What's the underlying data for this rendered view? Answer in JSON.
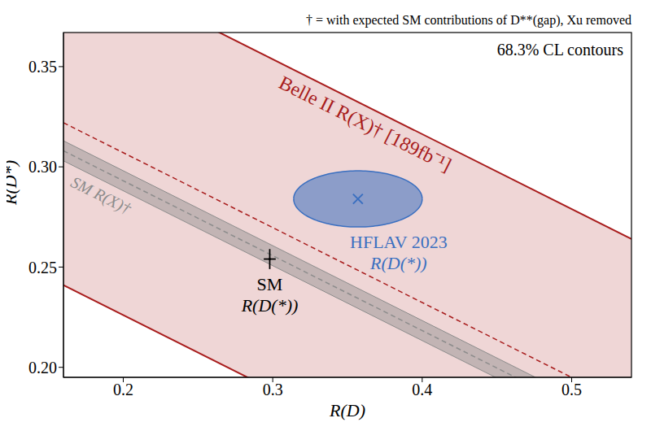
{
  "chart_data": {
    "type": "scatter",
    "header": "† = with expected SM contributions of D**(gap), Xu removed",
    "annotation": "68.3% CL contours",
    "x_label": "R(D)",
    "y_label": "R(D*)",
    "xlim": [
      0.16,
      0.54
    ],
    "xticks": [
      0.2,
      0.3,
      0.4,
      0.5
    ],
    "ylim": [
      0.195,
      0.367
    ],
    "yticks": [
      {
        "value": 0.2,
        "label": "0.20"
      },
      0.25,
      {
        "value": 0.3,
        "label": "0.30"
      },
      0.35
    ],
    "bands": [
      {
        "name": "Belle II R(X)† [189fb⁻¹]",
        "color": "#a81c1c",
        "line_style": "dashed",
        "x": [
          0.16,
          0.54
        ],
        "lower": [
          0.241,
          0.099
        ],
        "upper": [
          0.406,
          0.264
        ],
        "central": [
          0.322,
          0.18
        ]
      },
      {
        "name": "SM R(X)†",
        "color": "#8c8c8c",
        "line_style": "dashed",
        "x": [
          0.16,
          0.54
        ],
        "lower": [
          0.303,
          0.161
        ],
        "upper": [
          0.313,
          0.171
        ],
        "central": [
          0.308,
          0.166
        ]
      }
    ],
    "points": [
      {
        "name": "SM",
        "label": "R(D(*))",
        "x": 0.298,
        "y": 0.254,
        "x_err": 0.004,
        "y_err": 0.005,
        "color": "#000000",
        "marker": "cross"
      },
      {
        "name": "HFLAV 2023",
        "label": "R(D(*))",
        "x": 0.357,
        "y": 0.284,
        "x_radius": 0.043,
        "y_radius": 0.014,
        "color": "#3a6fc0",
        "marker": "x"
      }
    ]
  }
}
